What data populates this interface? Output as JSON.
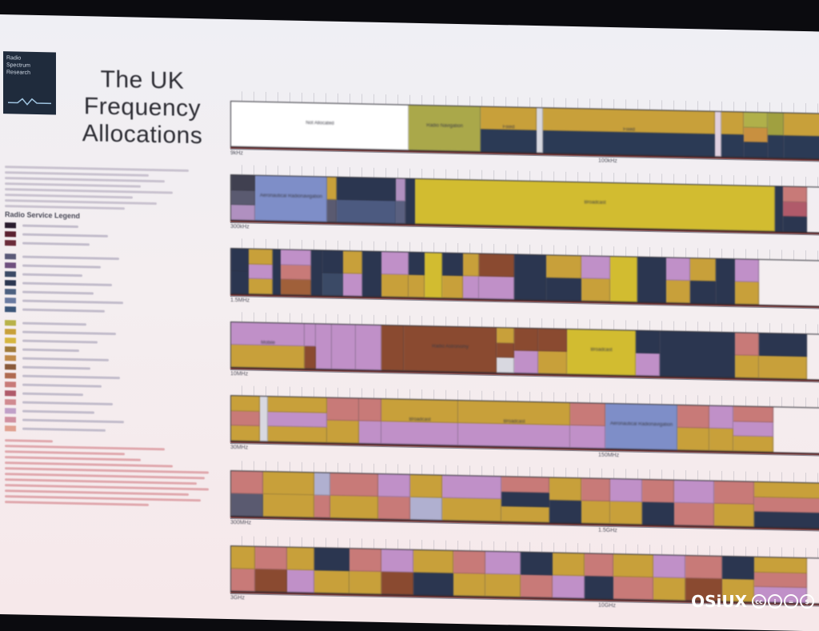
{
  "poster": {
    "logo_lines": [
      "Radio",
      "Spectrum",
      "Research"
    ],
    "title_lines": [
      "The UK",
      "Frequency",
      "Allocations"
    ]
  },
  "legend": {
    "heading": "Radio Service Legend",
    "items": [
      {
        "color": "#2a1c2e"
      },
      {
        "color": "#5a2030"
      },
      {
        "color": "#6b2c3a"
      },
      {
        "color": "#5b5a78"
      },
      {
        "color": "#6f4f7e"
      },
      {
        "color": "#3b4a66"
      },
      {
        "color": "#2b3650"
      },
      {
        "color": "#4c6080"
      },
      {
        "color": "#6a7aa0"
      },
      {
        "color": "#3b5578"
      },
      {
        "color": "#b8b24a"
      },
      {
        "color": "#c8a03a"
      },
      {
        "color": "#d6b640"
      },
      {
        "color": "#a07a3a"
      },
      {
        "color": "#c08a4a"
      },
      {
        "color": "#8a5a3a"
      },
      {
        "color": "#b06a50"
      },
      {
        "color": "#c87a78"
      },
      {
        "color": "#b05a6a"
      },
      {
        "color": "#d08a90"
      },
      {
        "color": "#c0a0c8"
      },
      {
        "color": "#d090a0"
      },
      {
        "color": "#e0a090"
      }
    ]
  },
  "bands": [
    {
      "label_left": "9kHz",
      "label_mid": "100kHz",
      "segments": [
        {
          "w": 222,
          "c": [
            "#ffffff"
          ],
          "label": "Not Allocated"
        },
        {
          "w": 90,
          "c": [
            "#aaa84a"
          ],
          "label": "Radio Navigation"
        },
        {
          "w": 70,
          "c": [
            "#c8a03a",
            "#2b3a55"
          ],
          "label": "Fixed"
        },
        {
          "w": 8,
          "c": [
            "#d8d8e0"
          ]
        },
        {
          "w": 215,
          "c": [
            "#c8a03a",
            "#2b3a55"
          ],
          "label": "Fixed"
        },
        {
          "w": 8,
          "c": [
            "#e0d0e0"
          ]
        },
        {
          "w": 28,
          "c": [
            "#c8a03a",
            "#2b3a55"
          ]
        },
        {
          "w": 30,
          "c": [
            "#b0b04a",
            "#c89040",
            "#2b3a55"
          ]
        },
        {
          "w": 20,
          "c": [
            "#a0a040",
            "#2b3a55"
          ]
        },
        {
          "w": 49,
          "c": [
            "#c8a03a",
            "#2b3a55"
          ]
        }
      ]
    },
    {
      "label_left": "300kHz",
      "segments": [
        {
          "w": 30,
          "c": [
            "#404050",
            "#5a5a70",
            "#b090c0"
          ]
        },
        {
          "w": 90,
          "c": [
            "#7e8ec8"
          ],
          "label": "Aeronautical Radionavigation"
        },
        {
          "w": 12,
          "c": [
            "#c8a03a",
            "#5a5a70"
          ]
        },
        {
          "w": 74,
          "c": [
            "#2b3650",
            "#4c5a80"
          ]
        },
        {
          "w": 12,
          "c": [
            "#b090c0",
            "#5a6080"
          ]
        },
        {
          "w": 12,
          "c": [
            "#2b3650"
          ]
        },
        {
          "w": 450,
          "c": [
            "#d2bc30"
          ],
          "label": "Broadcast"
        },
        {
          "w": 10,
          "c": [
            "#2b3650"
          ]
        },
        {
          "w": 30,
          "c": [
            "#c87a78",
            "#b05a6a",
            "#2b3650"
          ]
        }
      ]
    },
    {
      "label_left": "1.5MHz",
      "segments": [
        {
          "w": 22,
          "c": [
            "#2b3650",
            "#2b3650"
          ]
        },
        {
          "w": 30,
          "c": [
            "#c8a03a",
            "#c090c8",
            "#c8a03a"
          ]
        },
        {
          "w": 10,
          "c": [
            "#2b3650"
          ]
        },
        {
          "w": 38,
          "c": [
            "#c090c8",
            "#c87a78",
            "#a0603a"
          ]
        },
        {
          "w": 14,
          "c": [
            "#2b3650"
          ]
        },
        {
          "w": 26,
          "c": [
            "#2b3650",
            "#3b4a66"
          ]
        },
        {
          "w": 24,
          "c": [
            "#c8a03a",
            "#c090c8"
          ]
        },
        {
          "w": 24,
          "c": [
            "#2b3650"
          ]
        },
        {
          "w": 34,
          "c": [
            "#c090c8",
            "#c8a03a"
          ]
        },
        {
          "w": 20,
          "c": [
            "#2b3650",
            "#c8a03a"
          ]
        },
        {
          "w": 22,
          "c": [
            "#d2bc30"
          ]
        },
        {
          "w": 26,
          "c": [
            "#2b3650",
            "#c8a03a"
          ]
        },
        {
          "w": 20,
          "c": [
            "#c8a03a",
            "#c090c8"
          ]
        },
        {
          "w": 44,
          "c": [
            "#8a4a30",
            "#c090c8"
          ]
        },
        {
          "w": 40,
          "c": [
            "#2b3650"
          ]
        },
        {
          "w": 44,
          "c": [
            "#c8a03a",
            "#2b3650"
          ]
        },
        {
          "w": 36,
          "c": [
            "#c090c8",
            "#c8a03a"
          ]
        },
        {
          "w": 34,
          "c": [
            "#d2bc30"
          ]
        },
        {
          "w": 36,
          "c": [
            "#2b3650"
          ]
        },
        {
          "w": 30,
          "c": [
            "#c090c8",
            "#c8a03a"
          ]
        },
        {
          "w": 32,
          "c": [
            "#c8a03a",
            "#2b3650"
          ]
        },
        {
          "w": 24,
          "c": [
            "#2b3650"
          ]
        },
        {
          "w": 30,
          "c": [
            "#c090c8",
            "#c8a03a"
          ]
        }
      ]
    },
    {
      "label_left": "10MHz",
      "segments": [
        {
          "w": 92,
          "c": [
            "#c090c8",
            "#c8a03a"
          ],
          "label": "Mobile"
        },
        {
          "w": 14,
          "c": [
            "#c090c8",
            "#8a4a30"
          ]
        },
        {
          "w": 20,
          "c": [
            "#c090c8"
          ]
        },
        {
          "w": 30,
          "c": [
            "#c090c8"
          ]
        },
        {
          "w": 32,
          "c": [
            "#c090c8"
          ]
        },
        {
          "w": 28,
          "c": [
            "#8a4a30"
          ]
        },
        {
          "w": 116,
          "c": [
            "#8a4a30"
          ],
          "label": "Radio Astronomy"
        },
        {
          "w": 22,
          "c": [
            "#c8a03a",
            "#8a4a30",
            "#d8d8e0"
          ]
        },
        {
          "w": 30,
          "c": [
            "#8a4a30",
            "#c090c8"
          ]
        },
        {
          "w": 36,
          "c": [
            "#8a4a30",
            "#c8a03a"
          ]
        },
        {
          "w": 86,
          "c": [
            "#d2bc30"
          ],
          "label": "Broadcast"
        },
        {
          "w": 30,
          "c": [
            "#2b3650",
            "#c090c8"
          ]
        },
        {
          "w": 94,
          "c": [
            "#2b3650"
          ]
        },
        {
          "w": 30,
          "c": [
            "#c87a78",
            "#c8a03a"
          ]
        },
        {
          "w": 60,
          "c": [
            "#2b3650",
            "#c8a03a"
          ]
        }
      ]
    },
    {
      "label_left": "30MHz",
      "label_mid": "150MHz",
      "segments": [
        {
          "w": 36,
          "c": [
            "#c8a03a",
            "#c87a78",
            "#c8a03a"
          ]
        },
        {
          "w": 10,
          "c": [
            "#d8d8e0"
          ]
        },
        {
          "w": 74,
          "c": [
            "#c8a03a",
            "#c090c8",
            "#c8a03a"
          ]
        },
        {
          "w": 40,
          "c": [
            "#c87a78",
            "#c8a03a"
          ]
        },
        {
          "w": 28,
          "c": [
            "#c87a78",
            "#c090c8"
          ]
        },
        {
          "w": 96,
          "c": [
            "#c8a03a",
            "#c090c8"
          ],
          "label": "Broadcast"
        },
        {
          "w": 140,
          "c": [
            "#c8a03a",
            "#c090c8"
          ],
          "label": "Broadcast"
        },
        {
          "w": 44,
          "c": [
            "#c87a78",
            "#c090c8"
          ]
        },
        {
          "w": 90,
          "c": [
            "#7e8ec8"
          ],
          "label": "Aeronautical Radionavigation"
        },
        {
          "w": 40,
          "c": [
            "#c87a78",
            "#c8a03a"
          ]
        },
        {
          "w": 30,
          "c": [
            "#c090c8",
            "#c8a03a"
          ]
        },
        {
          "w": 50,
          "c": [
            "#c87a78",
            "#c090c8",
            "#c8a03a"
          ]
        }
      ]
    },
    {
      "label_left": "300MHz",
      "label_mid": "1.5GHz",
      "segments": [
        {
          "w": 40,
          "c": [
            "#c87a78",
            "#5a5a70"
          ]
        },
        {
          "w": 64,
          "c": [
            "#c8a03a",
            "#c8a03a"
          ]
        },
        {
          "w": 20,
          "c": [
            "#b0b0d0",
            "#c87a78"
          ]
        },
        {
          "w": 60,
          "c": [
            "#c87a78",
            "#c8a03a"
          ]
        },
        {
          "w": 40,
          "c": [
            "#c090c8",
            "#c87a78"
          ]
        },
        {
          "w": 40,
          "c": [
            "#c8a03a",
            "#b0b0d0"
          ]
        },
        {
          "w": 74,
          "c": [
            "#c090c8",
            "#c8a03a"
          ]
        },
        {
          "w": 60,
          "c": [
            "#c87a78",
            "#2b3650",
            "#c8a03a"
          ]
        },
        {
          "w": 40,
          "c": [
            "#c8a03a",
            "#2b3650"
          ]
        },
        {
          "w": 36,
          "c": [
            "#c87a78",
            "#c8a03a"
          ]
        },
        {
          "w": 40,
          "c": [
            "#c090c8",
            "#c8a03a"
          ]
        },
        {
          "w": 40,
          "c": [
            "#c87a78",
            "#2b3650"
          ]
        },
        {
          "w": 50,
          "c": [
            "#c090c8",
            "#c87a78"
          ]
        },
        {
          "w": 50,
          "c": [
            "#c87a78",
            "#c8a03a"
          ]
        },
        {
          "w": 86,
          "c": [
            "#c8a03a",
            "#c87a78",
            "#2b3650"
          ]
        }
      ]
    },
    {
      "label_left": "3GHz",
      "label_mid": "10GHz",
      "segments": [
        {
          "w": 30,
          "c": [
            "#c8a03a",
            "#c87a78"
          ]
        },
        {
          "w": 40,
          "c": [
            "#c87a78",
            "#8a4a30"
          ]
        },
        {
          "w": 34,
          "c": [
            "#c8a03a",
            "#c090c8"
          ]
        },
        {
          "w": 44,
          "c": [
            "#2b3650",
            "#c8a03a"
          ]
        },
        {
          "w": 40,
          "c": [
            "#c87a78",
            "#c8a03a"
          ]
        },
        {
          "w": 40,
          "c": [
            "#c090c8",
            "#8a4a30"
          ]
        },
        {
          "w": 50,
          "c": [
            "#c8a03a",
            "#2b3650"
          ]
        },
        {
          "w": 40,
          "c": [
            "#c87a78",
            "#c8a03a"
          ]
        },
        {
          "w": 44,
          "c": [
            "#c090c8",
            "#c8a03a"
          ]
        },
        {
          "w": 40,
          "c": [
            "#2b3650",
            "#c87a78"
          ]
        },
        {
          "w": 40,
          "c": [
            "#c8a03a",
            "#c090c8"
          ]
        },
        {
          "w": 36,
          "c": [
            "#c87a78",
            "#2b3650"
          ]
        },
        {
          "w": 50,
          "c": [
            "#c8a03a",
            "#c87a78"
          ]
        },
        {
          "w": 40,
          "c": [
            "#c090c8",
            "#c8a03a"
          ]
        },
        {
          "w": 46,
          "c": [
            "#c87a78",
            "#8a4a30"
          ]
        },
        {
          "w": 40,
          "c": [
            "#2b3650",
            "#c8a03a"
          ]
        },
        {
          "w": 66,
          "c": [
            "#c8a03a",
            "#c87a78",
            "#c090c8"
          ]
        }
      ]
    }
  ],
  "watermark": {
    "text": "OSiUX",
    "cc": [
      "cc",
      "i",
      "=",
      "$"
    ]
  }
}
